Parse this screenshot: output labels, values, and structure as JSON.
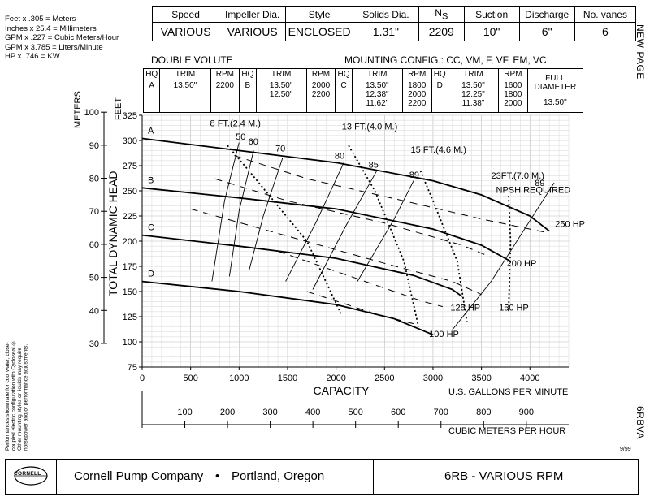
{
  "conversions": [
    "Feet x .305 = Meters",
    "Inches x 25.4 = Millimeters",
    "GPM x .227 = Cubic Meters/Hour",
    "GPM x 3.785 = Liters/Minute",
    "HP x .746 = KW"
  ],
  "spec_table": {
    "headers": [
      "Speed",
      "Impeller Dia.",
      "Style",
      "Solids Dia.",
      "NS",
      "Suction",
      "Discharge",
      "No. vanes"
    ],
    "ns_main": "N",
    "ns_sub": "S",
    "values": [
      "VARIOUS",
      "VARIOUS",
      "ENCLOSED",
      "1.31\"",
      "2209",
      "10\"",
      "6\"",
      "6"
    ]
  },
  "side_right_top": "NEW PAGE",
  "side_right_bottom": "6RBVA",
  "side_left_note": "Performances shown are for cool water, close-coupled electric configuration with Cycloseal.® Other mounting styles or liquids may require horsepower and/or performance adjustments.",
  "volute_label": "DOUBLE VOLUTE",
  "mounting_config": "MOUNTING CONFIG.:  CC,  VM,  F,  VF,  EM,  VC",
  "trim_table": {
    "headers": [
      "HQ",
      "TRIM",
      "RPM",
      "HQ",
      "TRIM",
      "RPM",
      "HQ",
      "TRIM",
      "RPM",
      "HQ",
      "TRIM",
      "RPM"
    ],
    "rows": [
      {
        "hq": "A",
        "trims": [
          "13.50\""
        ],
        "rpms": [
          "2200"
        ]
      },
      {
        "hq": "B",
        "trims": [
          "13.50\"",
          "12.50\""
        ],
        "rpms": [
          "2000",
          "2200"
        ]
      },
      {
        "hq": "C",
        "trims": [
          "13.50\"",
          "12.38\"",
          "11.62\""
        ],
        "rpms": [
          "1800",
          "2000",
          "2200"
        ]
      },
      {
        "hq": "D",
        "trims": [
          "13.50\"",
          "12.25\"",
          "11.38\""
        ],
        "rpms": [
          "1600",
          "1800",
          "2000"
        ]
      }
    ],
    "full_diameter_label": "FULL DIAMETER",
    "full_diameter_value": "13.50\""
  },
  "date_code": "9/99",
  "footer": {
    "logo_text": "CORNELL",
    "company": "Cornell Pump Company",
    "bullet": "•",
    "location": "Portland, Oregon",
    "model": "6RB - VARIOUS RPM"
  },
  "chart_data": {
    "type": "line",
    "xlabel": "CAPACITY",
    "xunit": "U.S. GALLONS PER MINUTE",
    "ylabel": "TOTAL DYNAMIC HEAD",
    "yunit_feet": "FEET",
    "yunit_meters": "METERS",
    "x2label": "CUBIC METERS PER HOUR",
    "xlim": [
      0,
      4400
    ],
    "ylim": [
      75,
      325
    ],
    "xticks": [
      0,
      500,
      1000,
      1500,
      2000,
      2500,
      3000,
      3500,
      4000
    ],
    "yticks": [
      75,
      100,
      125,
      150,
      175,
      200,
      225,
      250,
      275,
      300,
      325
    ],
    "meter_ticks": [
      30,
      40,
      50,
      60,
      70,
      80,
      90,
      100
    ],
    "m3h_ticks": [
      100,
      200,
      300,
      400,
      500,
      600,
      700,
      800,
      900
    ],
    "grid": true,
    "head_curves": [
      {
        "name": "A",
        "points": [
          [
            0,
            302
          ],
          [
            1000,
            290
          ],
          [
            2000,
            278
          ],
          [
            3000,
            260
          ],
          [
            3500,
            246
          ],
          [
            4000,
            225
          ],
          [
            4200,
            210
          ]
        ]
      },
      {
        "name": "B",
        "points": [
          [
            0,
            253
          ],
          [
            1000,
            243
          ],
          [
            2000,
            232
          ],
          [
            3000,
            212
          ],
          [
            3500,
            196
          ],
          [
            3800,
            180
          ]
        ]
      },
      {
        "name": "C",
        "points": [
          [
            0,
            206
          ],
          [
            1000,
            195
          ],
          [
            2000,
            183
          ],
          [
            2800,
            166
          ],
          [
            3200,
            152
          ],
          [
            3300,
            145
          ]
        ]
      },
      {
        "name": "D",
        "points": [
          [
            0,
            160
          ],
          [
            1000,
            150
          ],
          [
            2000,
            137
          ],
          [
            2600,
            123
          ],
          [
            3000,
            107
          ]
        ]
      }
    ],
    "efficiency_labels": [
      "50",
      "60",
      "70",
      "80",
      "85",
      "89",
      "89"
    ],
    "hp_labels": [
      "250 HP",
      "200 HP",
      "150 HP",
      "125 HP",
      "100 HP"
    ],
    "npsh_labels": [
      "8 FT.(2.4 M.)",
      "13 FT.(4.0 M.)",
      "15 FT.(4.6 M.)",
      "23FT.(7.0 M.)",
      "NPSH REQUIRED"
    ]
  }
}
